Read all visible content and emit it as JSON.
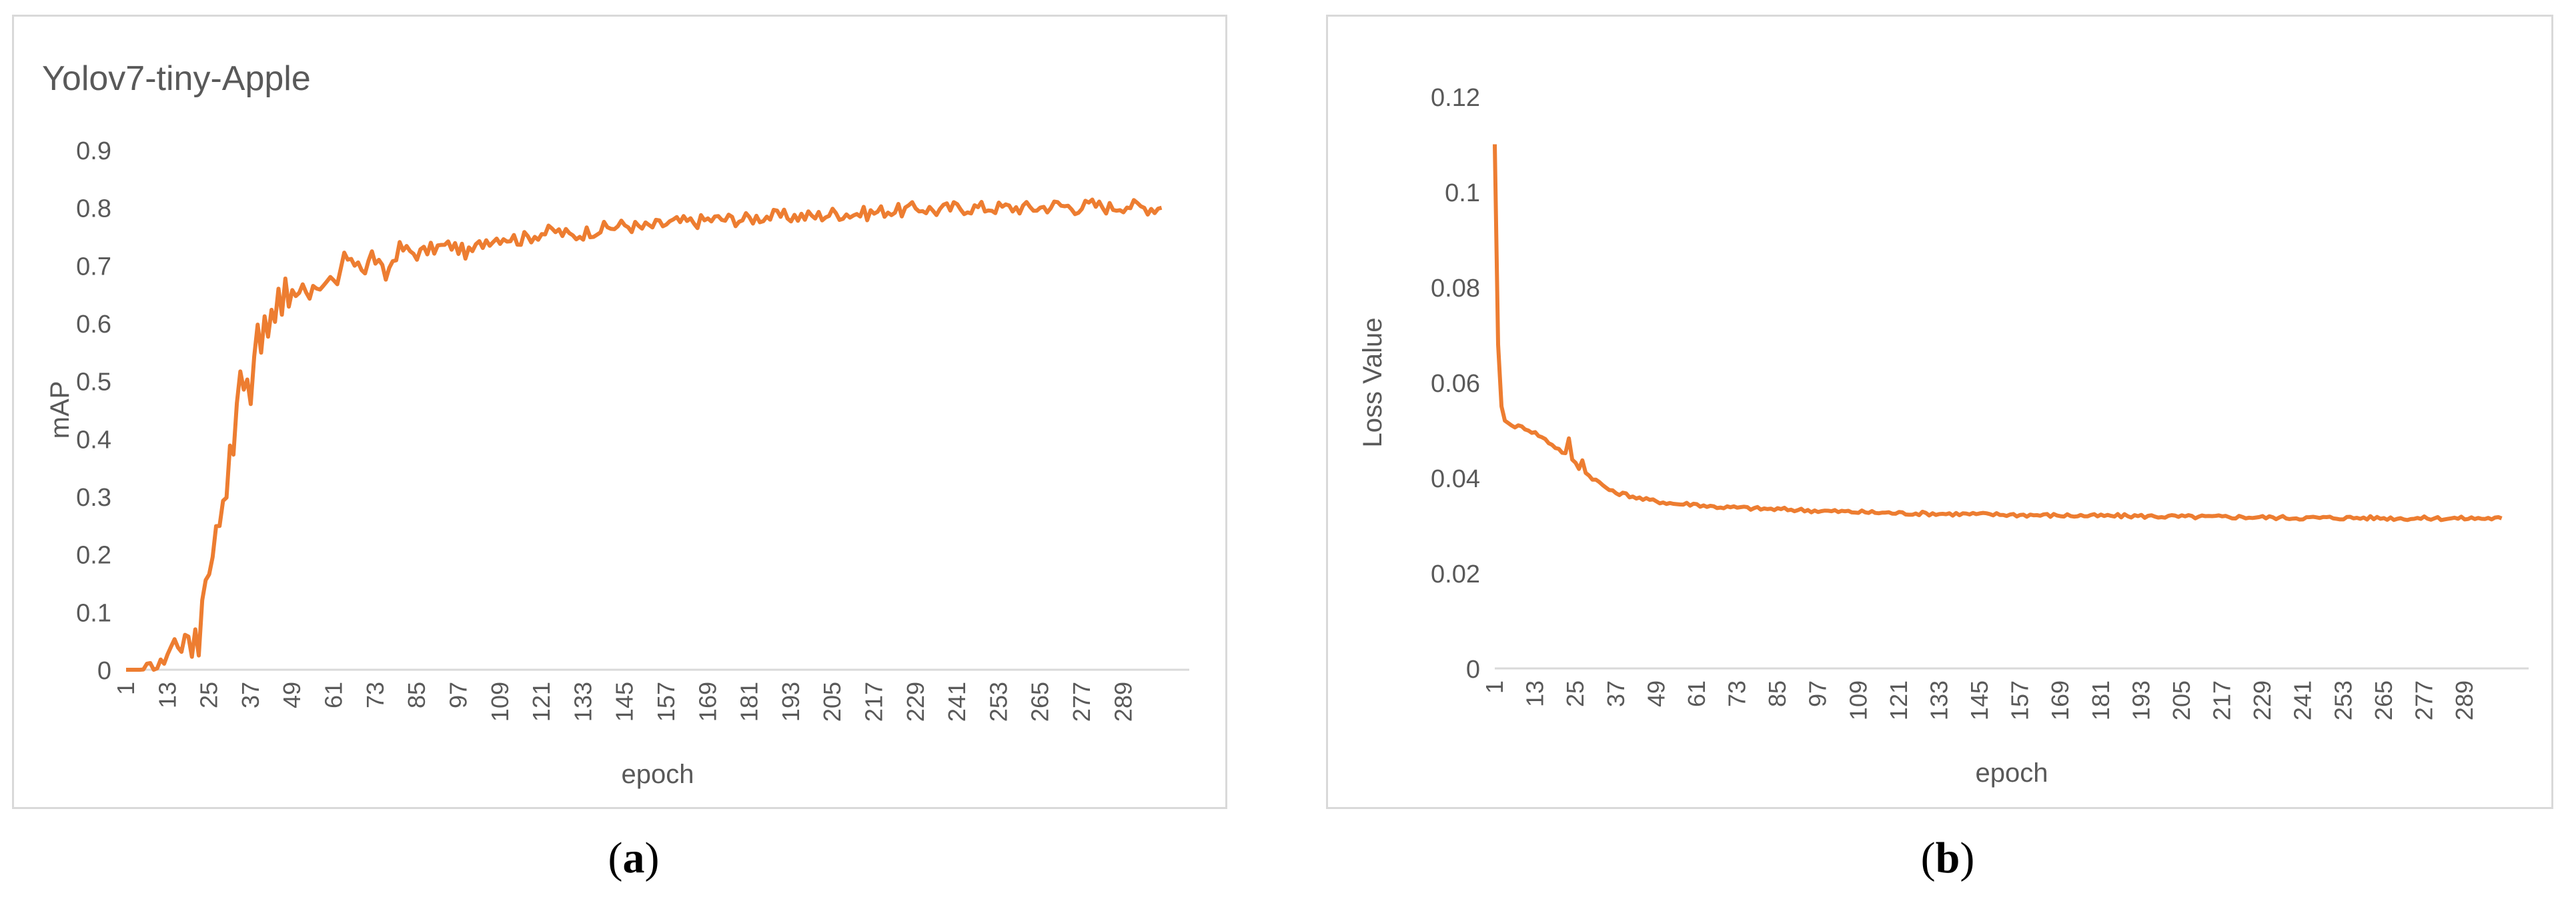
{
  "panel_labels": {
    "a": "a",
    "b": "b"
  },
  "colors": {
    "line": "#ed7d31",
    "axis": "#d9d9d9",
    "text": "#595959"
  },
  "chart_data": [
    {
      "id": "a",
      "type": "line",
      "title": "Yolov7-tiny-Apple",
      "xlabel": "epoch",
      "ylabel": "mAP",
      "ylim": [
        0,
        0.9
      ],
      "yticks": [
        "0",
        "0.1",
        "0.2",
        "0.3",
        "0.4",
        "0.5",
        "0.6",
        "0.7",
        "0.8",
        "0.9"
      ],
      "xlim": [
        1,
        300
      ],
      "xticks": [
        "1",
        "13",
        "25",
        "37",
        "49",
        "61",
        "73",
        "85",
        "97",
        "109",
        "121",
        "133",
        "145",
        "157",
        "169",
        "181",
        "193",
        "205",
        "217",
        "229",
        "241",
        "253",
        "265",
        "277",
        "289"
      ],
      "grid": false,
      "series": [
        {
          "points": [
            [
              1,
              0
            ],
            [
              5,
              0
            ],
            [
              9,
              0.002
            ],
            [
              11,
              0.008
            ],
            [
              13,
              0.03
            ],
            [
              15,
              0.05
            ],
            [
              17,
              0.04
            ],
            [
              19,
              0.06
            ],
            [
              20,
              0.03
            ],
            [
              21,
              0.07
            ],
            [
              22,
              0.03
            ],
            [
              23,
              0.13
            ],
            [
              24,
              0.15
            ],
            [
              25,
              0.17
            ],
            [
              26,
              0.2
            ],
            [
              27,
              0.26
            ],
            [
              28,
              0.24
            ],
            [
              29,
              0.3
            ],
            [
              30,
              0.29
            ],
            [
              31,
              0.39
            ],
            [
              32,
              0.38
            ],
            [
              33,
              0.46
            ],
            [
              34,
              0.52
            ],
            [
              35,
              0.48
            ],
            [
              36,
              0.5
            ],
            [
              37,
              0.47
            ],
            [
              38,
              0.55
            ],
            [
              39,
              0.6
            ],
            [
              40,
              0.56
            ],
            [
              41,
              0.6
            ],
            [
              42,
              0.58
            ],
            [
              43,
              0.62
            ],
            [
              44,
              0.6
            ],
            [
              45,
              0.65
            ],
            [
              46,
              0.62
            ],
            [
              47,
              0.68
            ],
            [
              48,
              0.63
            ],
            [
              49,
              0.66
            ],
            [
              50,
              0.64
            ],
            [
              52,
              0.67
            ],
            [
              54,
              0.65
            ],
            [
              56,
              0.67
            ],
            [
              58,
              0.66
            ],
            [
              60,
              0.67
            ],
            [
              62,
              0.66
            ],
            [
              64,
              0.72
            ],
            [
              66,
              0.7
            ],
            [
              68,
              0.71
            ],
            [
              70,
              0.69
            ],
            [
              72,
              0.72
            ],
            [
              74,
              0.7
            ],
            [
              76,
              0.68
            ],
            [
              78,
              0.71
            ],
            [
              80,
              0.73
            ],
            [
              85,
              0.72
            ],
            [
              90,
              0.73
            ],
            [
              95,
              0.735
            ],
            [
              100,
              0.72
            ],
            [
              105,
              0.745
            ],
            [
              110,
              0.75
            ],
            [
              115,
              0.745
            ],
            [
              120,
              0.755
            ],
            [
              125,
              0.76
            ],
            [
              130,
              0.75
            ],
            [
              135,
              0.76
            ],
            [
              140,
              0.765
            ],
            [
              145,
              0.77
            ],
            [
              150,
              0.765
            ],
            [
              155,
              0.77
            ],
            [
              160,
              0.775
            ],
            [
              165,
              0.775
            ],
            [
              170,
              0.78
            ],
            [
              175,
              0.78
            ],
            [
              180,
              0.78
            ],
            [
              185,
              0.785
            ],
            [
              190,
              0.785
            ],
            [
              195,
              0.785
            ],
            [
              200,
              0.785
            ],
            [
              205,
              0.79
            ],
            [
              210,
              0.79
            ],
            [
              215,
              0.79
            ],
            [
              220,
              0.795
            ],
            [
              225,
              0.795
            ],
            [
              230,
              0.8
            ],
            [
              235,
              0.795
            ],
            [
              240,
              0.8
            ],
            [
              245,
              0.8
            ],
            [
              250,
              0.8
            ],
            [
              255,
              0.8
            ],
            [
              260,
              0.8
            ],
            [
              265,
              0.8
            ],
            [
              270,
              0.805
            ],
            [
              275,
              0.8
            ],
            [
              280,
              0.805
            ],
            [
              285,
              0.8
            ],
            [
              290,
              0.805
            ],
            [
              295,
              0.8
            ],
            [
              300,
              0.8
            ]
          ],
          "noise": 0.012
        }
      ]
    },
    {
      "id": "b",
      "type": "line",
      "title": "",
      "xlabel": "epoch",
      "ylabel": "Loss Value",
      "ylim": [
        0,
        0.12
      ],
      "yticks": [
        "0",
        "0.02",
        "0.04",
        "0.06",
        "0.08",
        "0.1",
        "0.12"
      ],
      "xlim": [
        1,
        300
      ],
      "xticks": [
        "1",
        "13",
        "25",
        "37",
        "49",
        "61",
        "73",
        "85",
        "97",
        "109",
        "121",
        "133",
        "145",
        "157",
        "169",
        "181",
        "193",
        "205",
        "217",
        "229",
        "241",
        "253",
        "265",
        "277",
        "289"
      ],
      "grid": false,
      "series": [
        {
          "points": [
            [
              1,
              0.11
            ],
            [
              2,
              0.068
            ],
            [
              3,
              0.055
            ],
            [
              4,
              0.052
            ],
            [
              6,
              0.051
            ],
            [
              10,
              0.0505
            ],
            [
              14,
              0.049
            ],
            [
              18,
              0.047
            ],
            [
              20,
              0.046
            ],
            [
              22,
              0.045
            ],
            [
              23,
              0.048
            ],
            [
              24,
              0.044
            ],
            [
              25,
              0.043
            ],
            [
              26,
              0.042
            ],
            [
              27,
              0.044
            ],
            [
              28,
              0.041
            ],
            [
              30,
              0.04
            ],
            [
              32,
              0.039
            ],
            [
              34,
              0.038
            ],
            [
              36,
              0.037
            ],
            [
              40,
              0.0365
            ],
            [
              45,
              0.0355
            ],
            [
              50,
              0.035
            ],
            [
              55,
              0.0345
            ],
            [
              60,
              0.0345
            ],
            [
              65,
              0.034
            ],
            [
              70,
              0.0338
            ],
            [
              75,
              0.0337
            ],
            [
              80,
              0.0335
            ],
            [
              90,
              0.0333
            ],
            [
              100,
              0.033
            ],
            [
              110,
              0.0328
            ],
            [
              120,
              0.0326
            ],
            [
              130,
              0.0325
            ],
            [
              140,
              0.0324
            ],
            [
              150,
              0.0323
            ],
            [
              160,
              0.0322
            ],
            [
              170,
              0.0321
            ],
            [
              180,
              0.032
            ],
            [
              190,
              0.032
            ],
            [
              200,
              0.0319
            ],
            [
              210,
              0.0318
            ],
            [
              220,
              0.0318
            ],
            [
              230,
              0.0317
            ],
            [
              240,
              0.0316
            ],
            [
              250,
              0.0316
            ],
            [
              260,
              0.0316
            ],
            [
              270,
              0.0315
            ],
            [
              280,
              0.0315
            ],
            [
              290,
              0.0315
            ],
            [
              300,
              0.0315
            ]
          ],
          "noise": 0.0004
        }
      ]
    }
  ]
}
